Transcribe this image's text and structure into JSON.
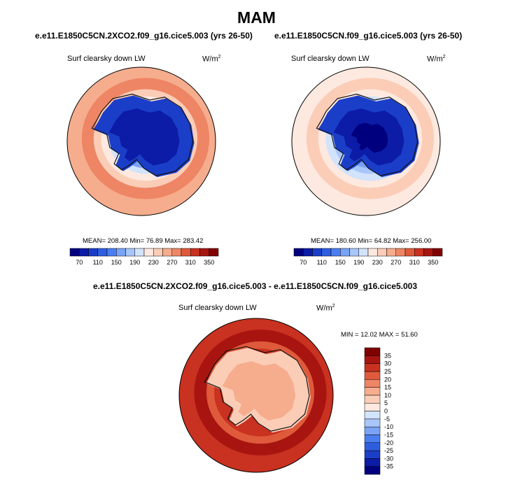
{
  "figure": {
    "season": "MAM"
  },
  "chart_data": [
    {
      "type": "heatmap",
      "projection": "south-polar-stereographic",
      "title": "e.e11.E1850C5CN.2XCO2.f09_g16.cice5.003 (yrs 26-50)",
      "variable": "Surf clearsky down LW",
      "units": "W/m",
      "units_sup": "2",
      "stats": {
        "mean": 208.4,
        "min": 76.89,
        "max": 283.42,
        "label": "MEAN= 208.40  Min=  76.89  Max= 283.42"
      },
      "colorbar": {
        "levels": [
          70,
          90,
          110,
          130,
          150,
          170,
          190,
          210,
          230,
          250,
          270,
          290,
          310,
          330,
          350
        ],
        "tick_labels": [
          "70",
          "110",
          "150",
          "190",
          "230",
          "270",
          "310",
          "350"
        ],
        "colors": [
          "#00007f",
          "#0c1ca6",
          "#1b3ec8",
          "#2e5ee0",
          "#4a7ef0",
          "#7aa3f5",
          "#a9c6fa",
          "#d2e3fc",
          "#fde9df",
          "#fbcdb7",
          "#f6ad8e",
          "#ee8564",
          "#df5a3b",
          "#c93120",
          "#a81510",
          "#800000"
        ]
      },
      "fill_level": 0.68,
      "ring_levels": [
        0.74,
        0.62,
        0.52,
        0.44,
        0.36
      ],
      "core_levels": [
        0.16,
        0.09,
        0.04
      ]
    },
    {
      "type": "heatmap",
      "projection": "south-polar-stereographic",
      "title": "e.e11.E1850C5CN.f09_g16.cice5.003 (yrs 26-50)",
      "variable": "Surf clearsky down LW",
      "units": "W/m",
      "units_sup": "2",
      "stats": {
        "mean": 180.6,
        "min": 64.82,
        "max": 256.0,
        "label": "MEAN= 180.60  Min=  64.82  Max= 256.00"
      },
      "colorbar": {
        "levels": [
          70,
          90,
          110,
          130,
          150,
          170,
          190,
          210,
          230,
          250,
          270,
          290,
          310,
          330,
          350
        ],
        "tick_labels": [
          "70",
          "110",
          "150",
          "190",
          "230",
          "270",
          "310",
          "350"
        ],
        "colors": [
          "#00007f",
          "#0c1ca6",
          "#1b3ec8",
          "#2e5ee0",
          "#4a7ef0",
          "#7aa3f5",
          "#a9c6fa",
          "#d2e3fc",
          "#fde9df",
          "#fbcdb7",
          "#f6ad8e",
          "#ee8564",
          "#df5a3b",
          "#c93120",
          "#a81510",
          "#800000"
        ]
      },
      "fill_level": 0.56,
      "ring_levels": [
        0.62,
        0.5,
        0.44,
        0.38,
        0.3
      ],
      "core_levels": [
        0.1,
        0.05,
        0.02
      ]
    },
    {
      "type": "heatmap",
      "projection": "south-polar-stereographic",
      "title": "e.e11.E1850C5CN.2XCO2.f09_g16.cice5.003 - e.e11.E1850C5CN.f09_g16.cice5.003",
      "variable": "Surf clearsky down LW",
      "units": "W/m",
      "units_sup": "2",
      "stats": {
        "min": 12.02,
        "max": 51.6,
        "label": "MIN =  12.02 MAX =  51.60"
      },
      "colorbar": {
        "levels": [
          -35,
          -30,
          -25,
          -20,
          -15,
          -10,
          -5,
          0,
          5,
          10,
          15,
          20,
          25,
          30,
          35
        ],
        "tick_labels": [
          "-35",
          "-30",
          "-25",
          "-20",
          "-15",
          "-10",
          "-5",
          "0",
          "5",
          "10",
          "15",
          "20",
          "25",
          "30",
          "35"
        ],
        "colors": [
          "#00007f",
          "#0c1ca6",
          "#1b3ec8",
          "#2e5ee0",
          "#4a7ef0",
          "#7aa3f5",
          "#a9c6fa",
          "#d2e3fc",
          "#fde9df",
          "#fbcdb7",
          "#f6ad8e",
          "#ee8564",
          "#df5a3b",
          "#c93120",
          "#a81510",
          "#800000"
        ]
      },
      "fill_level": 0.88,
      "ring_levels": [
        0.94,
        0.82,
        0.88
      ],
      "core_levels": [
        0.62,
        0.68
      ]
    }
  ]
}
